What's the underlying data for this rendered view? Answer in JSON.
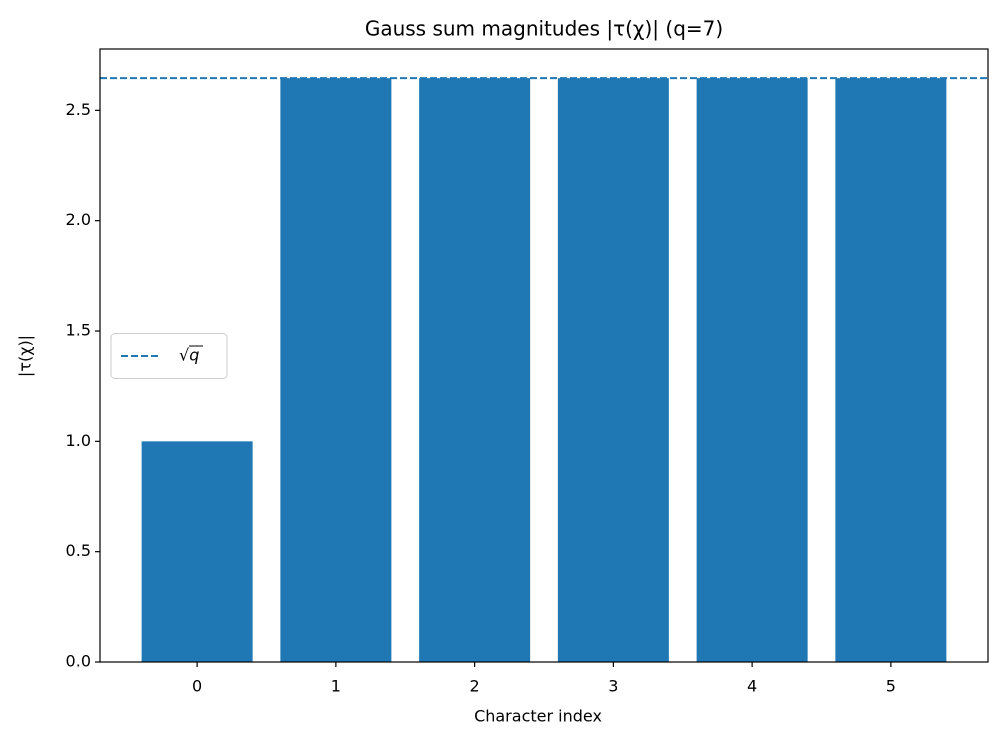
{
  "chart_data": {
    "type": "bar",
    "title": "Gauss sum magnitudes |τ(χ)| (q=7)",
    "x_label": "Character index",
    "y_label": "|τ(χ)|",
    "x": [
      0,
      1,
      2,
      3,
      4,
      5
    ],
    "values": [
      1.0,
      2.6458,
      2.6458,
      2.6458,
      2.6458,
      2.6458
    ],
    "color": "#1f77b4",
    "xlim": [
      -0.7,
      5.7
    ],
    "xticks": [
      0,
      1,
      2,
      3,
      4,
      5
    ],
    "ylim": [
      0,
      2.778
    ],
    "yticks": [
      {
        "value": 0,
        "label": "0.0"
      },
      {
        "value": 0.5,
        "label": "0.5"
      },
      {
        "value": 1,
        "label": "1.0"
      },
      {
        "value": 1.5,
        "label": "1.5"
      },
      {
        "value": 2,
        "label": "2.0"
      },
      {
        "value": 2.5,
        "label": "2.5"
      }
    ],
    "reference_lines": [
      {
        "name": "√q",
        "value": 2.6458,
        "color": "#1f77b4",
        "style": "dashed"
      }
    ],
    "legend": "center left",
    "grid": false
  }
}
